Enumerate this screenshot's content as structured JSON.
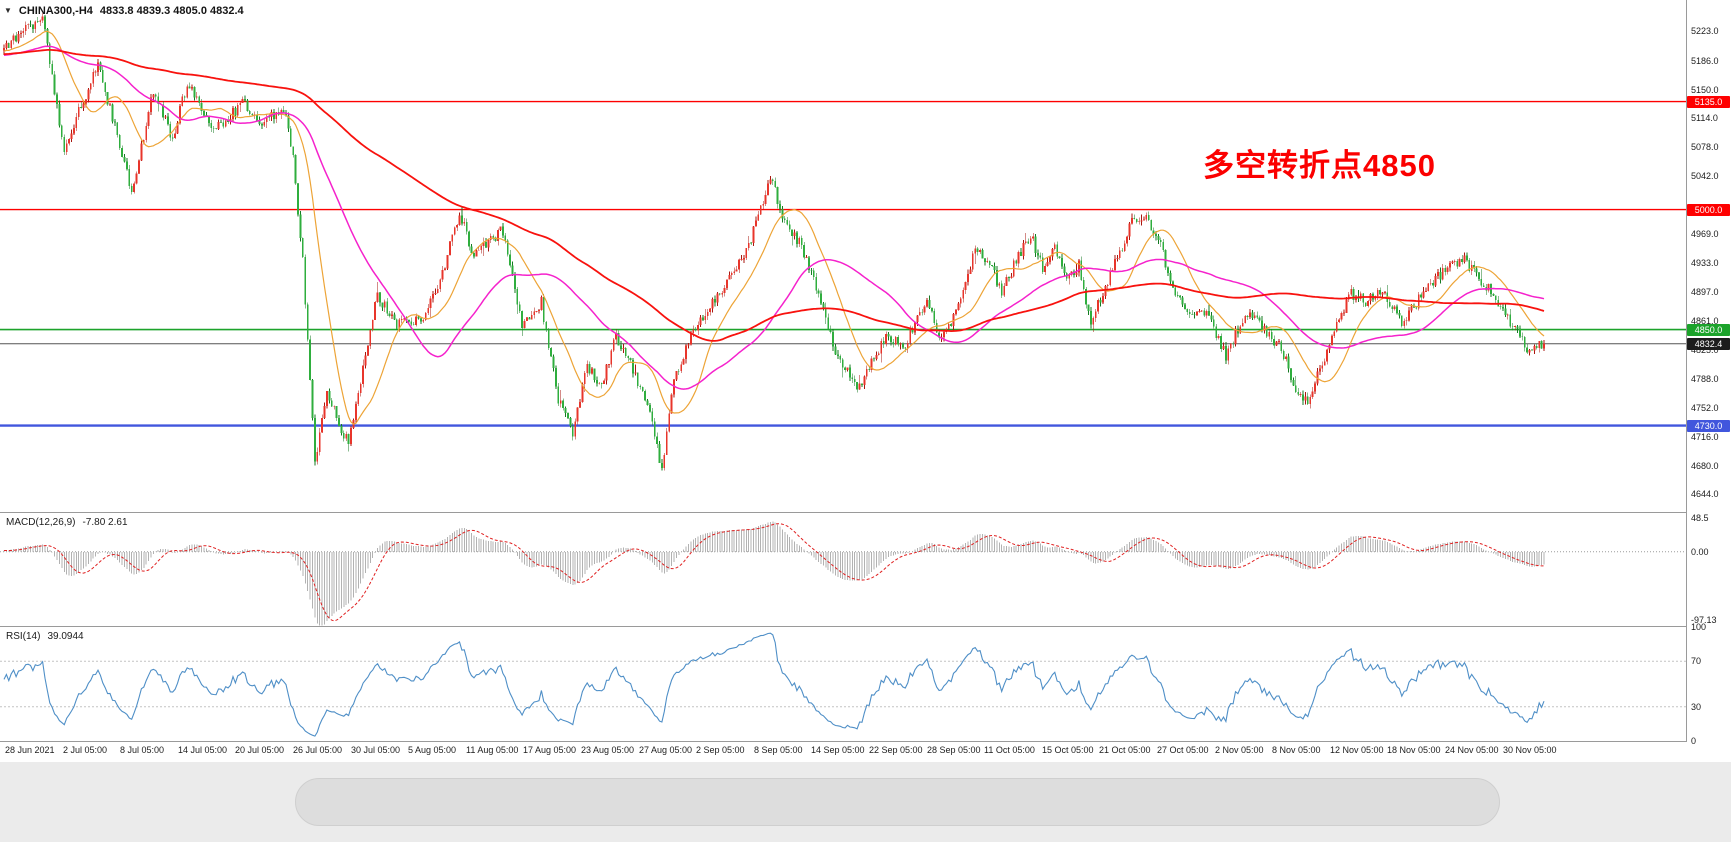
{
  "header": {
    "marker": "▼",
    "symbol": "CHINA300,-H4",
    "ohlc": "4833.8 4839.3 4805.0 4832.4"
  },
  "chart_data": {
    "type": "candlestick",
    "title": "CHINA300,-H4",
    "timeframe": "H4",
    "xlabel": "",
    "ylabel": "",
    "ylim": [
      4622,
      5262
    ],
    "grid": false,
    "candle_count": 640,
    "prehistory": 180,
    "seed": 42,
    "noise": 7,
    "wick": 5.5,
    "last_close": 4832.4,
    "colors": {
      "up_fill": "#e8352b",
      "up_dark": "#a8170f",
      "down_fill": "#2fae3e",
      "down_dark": "#157a22",
      "background": "#ffffff"
    },
    "x_labels": [
      "28 Jun 2021",
      "2 Jul 05:00",
      "8 Jul 05:00",
      "14 Jul 05:00",
      "20 Jul 05:00",
      "26 Jul 05:00",
      "30 Jul 05:00",
      "5 Aug 05:00",
      "11 Aug 05:00",
      "17 Aug 05:00",
      "23 Aug 05:00",
      "27 Aug 05:00",
      "2 Sep 05:00",
      "8 Sep 05:00",
      "14 Sep 05:00",
      "22 Sep 05:00",
      "28 Sep 05:00",
      "11 Oct 05:00",
      "15 Oct 05:00",
      "21 Oct 05:00",
      "27 Oct 05:00",
      "2 Nov 05:00",
      "8 Nov 05:00",
      "12 Nov 05:00",
      "18 Nov 05:00",
      "24 Nov 05:00",
      "30 Nov 05:00"
    ],
    "y_axis_labels": [
      5223.0,
      5186.0,
      5150.0,
      5114.0,
      5078.0,
      5042.0,
      4969.0,
      4933.0,
      4897.0,
      4861.0,
      4825.0,
      4788.0,
      4752.0,
      4716.0,
      4680.0,
      4644.0
    ],
    "horizontal_lines": [
      {
        "value": 5135.0,
        "color": "#fe0000",
        "width": 1.4,
        "badge": "#fe0000"
      },
      {
        "value": 5000.0,
        "color": "#fe0000",
        "width": 1.4,
        "badge": "#fe0000"
      },
      {
        "value": 4850.0,
        "color": "#1ca32b",
        "width": 1.6,
        "badge": "#1ca32b"
      },
      {
        "value": 4832.4,
        "color": "#555555",
        "width": 1.0,
        "badge": "#1c1c1c"
      },
      {
        "value": 4730.0,
        "color": "#4156dd",
        "width": 2.4,
        "badge": "#4156dd"
      }
    ],
    "annotation": {
      "text": "多空转折点4850",
      "color": "#fb0000"
    },
    "moving_averages": [
      {
        "name": "ma-fast",
        "period": 18,
        "color": "#eda437",
        "width": 1.2
      },
      {
        "name": "ma-mid",
        "period": 56,
        "color": "#f522cc",
        "width": 1.5
      },
      {
        "name": "ma-slow",
        "period": 170,
        "color": "#f8120e",
        "width": 1.8
      }
    ],
    "pre_anchors": [
      [
        -180,
        5150
      ],
      [
        -120,
        5215
      ],
      [
        -60,
        5185
      ],
      [
        -1,
        5200
      ]
    ],
    "price_anchors": [
      [
        0,
        5200
      ],
      [
        16,
        5243
      ],
      [
        25,
        5075
      ],
      [
        39,
        5183
      ],
      [
        53,
        5022
      ],
      [
        62,
        5148
      ],
      [
        70,
        5088
      ],
      [
        76,
        5158
      ],
      [
        87,
        5097
      ],
      [
        99,
        5133
      ],
      [
        107,
        5110
      ],
      [
        116,
        5128
      ],
      [
        120,
        5062
      ],
      [
        124,
        4935
      ],
      [
        129,
        4685
      ],
      [
        134,
        4772
      ],
      [
        143,
        4705
      ],
      [
        149,
        4800
      ],
      [
        155,
        4893
      ],
      [
        163,
        4856
      ],
      [
        174,
        4866
      ],
      [
        182,
        4920
      ],
      [
        189,
        4999
      ],
      [
        194,
        4946
      ],
      [
        207,
        4974
      ],
      [
        215,
        4856
      ],
      [
        223,
        4884
      ],
      [
        230,
        4762
      ],
      [
        236,
        4718
      ],
      [
        242,
        4804
      ],
      [
        248,
        4782
      ],
      [
        254,
        4843
      ],
      [
        261,
        4800
      ],
      [
        268,
        4752
      ],
      [
        273,
        4672
      ],
      [
        278,
        4788
      ],
      [
        285,
        4843
      ],
      [
        293,
        4878
      ],
      [
        302,
        4918
      ],
      [
        309,
        4953
      ],
      [
        318,
        5040
      ],
      [
        323,
        4994
      ],
      [
        331,
        4953
      ],
      [
        338,
        4896
      ],
      [
        345,
        4820
      ],
      [
        355,
        4776
      ],
      [
        360,
        4810
      ],
      [
        367,
        4844
      ],
      [
        373,
        4826
      ],
      [
        379,
        4863
      ],
      [
        383,
        4886
      ],
      [
        388,
        4840
      ],
      [
        395,
        4868
      ],
      [
        403,
        4952
      ],
      [
        409,
        4934
      ],
      [
        414,
        4896
      ],
      [
        421,
        4944
      ],
      [
        426,
        4968
      ],
      [
        431,
        4926
      ],
      [
        436,
        4954
      ],
      [
        441,
        4916
      ],
      [
        446,
        4930
      ],
      [
        451,
        4860
      ],
      [
        456,
        4898
      ],
      [
        462,
        4940
      ],
      [
        468,
        4984
      ],
      [
        474,
        4994
      ],
      [
        480,
        4954
      ],
      [
        486,
        4896
      ],
      [
        491,
        4866
      ],
      [
        497,
        4880
      ],
      [
        503,
        4846
      ],
      [
        507,
        4816
      ],
      [
        513,
        4858
      ],
      [
        519,
        4868
      ],
      [
        524,
        4846
      ],
      [
        530,
        4826
      ],
      [
        536,
        4776
      ],
      [
        541,
        4760
      ],
      [
        547,
        4806
      ],
      [
        553,
        4858
      ],
      [
        559,
        4894
      ],
      [
        565,
        4886
      ],
      [
        571,
        4900
      ],
      [
        577,
        4876
      ],
      [
        581,
        4856
      ],
      [
        588,
        4894
      ],
      [
        594,
        4914
      ],
      [
        600,
        4930
      ],
      [
        606,
        4938
      ],
      [
        611,
        4916
      ],
      [
        617,
        4898
      ],
      [
        623,
        4866
      ],
      [
        629,
        4846
      ],
      [
        633,
        4822
      ],
      [
        639,
        4832.4
      ]
    ],
    "indicators": {
      "macd": {
        "label": "MACD(12,26,9)",
        "values": "-7.80 2.61",
        "fast": 12,
        "slow": 26,
        "signal": 9,
        "y_labels": [
          "48.5",
          "0.00",
          "-97.13"
        ],
        "range": [
          -105,
          55
        ],
        "hist_color": "#b2b2b2",
        "signal_color": "#e02020"
      },
      "rsi": {
        "label": "RSI(14)",
        "value": "39.0944",
        "period": 14,
        "y_labels": [
          "100",
          "70",
          "30",
          "0"
        ],
        "levels": [
          70,
          30
        ],
        "range": [
          0,
          100
        ],
        "color": "#4f8fc7"
      }
    }
  }
}
